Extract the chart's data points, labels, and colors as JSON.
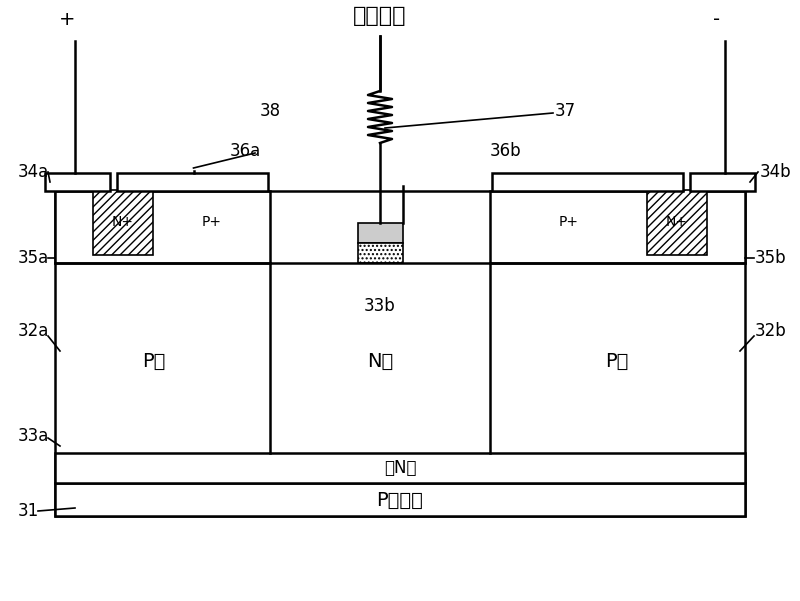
{
  "title": "芯片电源",
  "bg_color": "#ffffff",
  "line_color": "#000000",
  "hatch_color": "#000000",
  "figsize": [
    8.0,
    6.01
  ],
  "dpi": 100,
  "labels": {
    "plus": "+",
    "minus": "-",
    "34a": "34a",
    "34b": "34b",
    "35a": "35a",
    "35b": "35b",
    "32a": "32a",
    "32b": "32b",
    "33a": "33a",
    "33b": "33b",
    "36a": "36a",
    "36b": "36b",
    "37": "37",
    "38": "38",
    "31": "31",
    "Np_left": "N+",
    "Pp_left": "P+",
    "Pp_right": "P+",
    "Np_right": "N+",
    "P_well_left": "P阱",
    "N_well": "N阱",
    "P_well_right": "P阱",
    "deep_N": "深N阱",
    "P_sub": "P型衬底"
  }
}
